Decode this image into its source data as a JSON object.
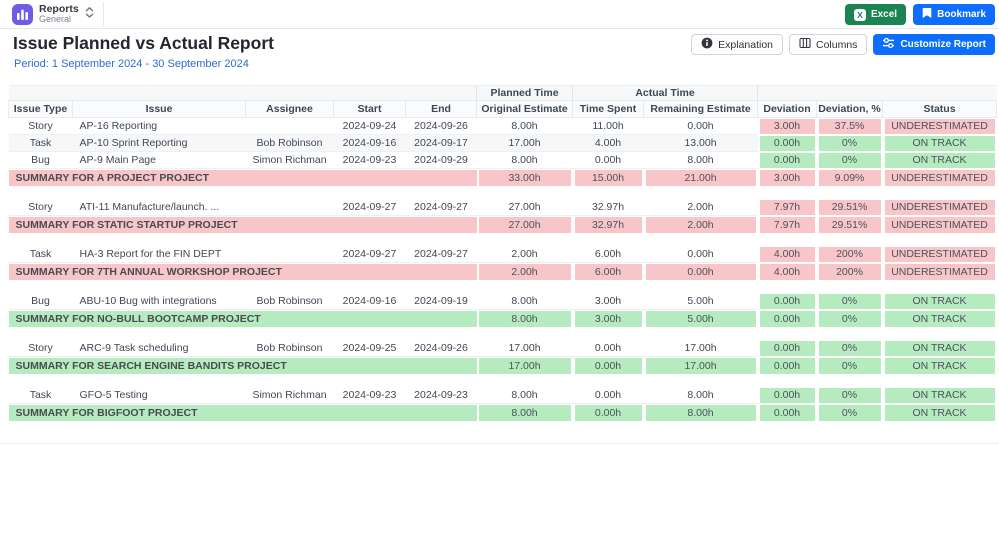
{
  "nav": {
    "app_title": "Reports",
    "app_subtitle": "General"
  },
  "header": {
    "title": "Issue Planned vs Actual Report",
    "period": "Period: 1 September 2024 - 30 September 2024",
    "buttons": {
      "excel": "Excel",
      "bookmark": "Bookmark",
      "explanation": "Explanation",
      "columns": "Columns",
      "customize": "Customize Report"
    }
  },
  "icons": {
    "logo": "bar-chart",
    "app_selector": "chevron-up-down",
    "excel_glyph": "X",
    "bookmark": "bookmark",
    "explanation": "info-circle",
    "columns": "columns",
    "customize": "sliders"
  },
  "colors": {
    "accent_blue": "#0d6efd",
    "excel_green": "#1b8450",
    "logo_purple": "#6e5be6",
    "period_blue": "#2d6cd2",
    "underestimated_pink": "#f8c6c8",
    "on_track_green": "#b5ebbe"
  },
  "table": {
    "group_headers": {
      "planned": "Planned Time",
      "actual": "Actual Time"
    },
    "columns": [
      "Issue Type",
      "Issue",
      "Assignee",
      "Start",
      "End",
      "Original Estimate",
      "Time Spent",
      "Remaining Estimate",
      "Deviation",
      "Deviation, %",
      "Status"
    ],
    "groups": [
      {
        "rows": [
          {
            "issue_type": "Story",
            "issue": "AP-16 Reporting",
            "assignee": "",
            "start": "2024-09-24",
            "end": "2024-09-26",
            "original_estimate": "8.00h",
            "time_spent": "11.00h",
            "remaining_estimate": "0.00h",
            "deviation": "3.00h",
            "deviation_pct": "37.5%",
            "status": "UNDERESTIMATED",
            "state": "bad"
          },
          {
            "issue_type": "Task",
            "issue": "AP-10 Sprint Reporting",
            "assignee": "Bob Robinson",
            "start": "2024-09-16",
            "end": "2024-09-17",
            "original_estimate": "17.00h",
            "time_spent": "4.00h",
            "remaining_estimate": "13.00h",
            "deviation": "0.00h",
            "deviation_pct": "0%",
            "status": "ON TRACK",
            "state": "good"
          },
          {
            "issue_type": "Bug",
            "issue": "AP-9 Main Page",
            "assignee": "Simon Richman",
            "start": "2024-09-23",
            "end": "2024-09-29",
            "original_estimate": "8.00h",
            "time_spent": "0.00h",
            "remaining_estimate": "8.00h",
            "deviation": "0.00h",
            "deviation_pct": "0%",
            "status": "ON TRACK",
            "state": "good"
          }
        ],
        "summary": {
          "label": "SUMMARY FOR A PROJECT PROJECT",
          "original_estimate": "33.00h",
          "time_spent": "15.00h",
          "remaining_estimate": "21.00h",
          "deviation": "3.00h",
          "deviation_pct": "9.09%",
          "status": "UNDERESTIMATED",
          "state": "bad"
        }
      },
      {
        "rows": [
          {
            "issue_type": "Story",
            "issue": "ATI-11 Manufacture/launch. ...",
            "assignee": "",
            "start": "2024-09-27",
            "end": "2024-09-27",
            "original_estimate": "27.00h",
            "time_spent": "32.97h",
            "remaining_estimate": "2.00h",
            "deviation": "7.97h",
            "deviation_pct": "29.51%",
            "status": "UNDERESTIMATED",
            "state": "bad"
          }
        ],
        "summary": {
          "label": "SUMMARY FOR STATIC STARTUP PROJECT",
          "original_estimate": "27.00h",
          "time_spent": "32.97h",
          "remaining_estimate": "2.00h",
          "deviation": "7.97h",
          "deviation_pct": "29.51%",
          "status": "UNDERESTIMATED",
          "state": "bad"
        }
      },
      {
        "rows": [
          {
            "issue_type": "Task",
            "issue": "HA-3 Report for the FIN DEPT",
            "assignee": "",
            "start": "2024-09-27",
            "end": "2024-09-27",
            "original_estimate": "2.00h",
            "time_spent": "6.00h",
            "remaining_estimate": "0.00h",
            "deviation": "4.00h",
            "deviation_pct": "200%",
            "status": "UNDERESTIMATED",
            "state": "bad"
          }
        ],
        "summary": {
          "label": "SUMMARY FOR 7TH ANNUAL WORKSHOP PROJECT",
          "original_estimate": "2.00h",
          "time_spent": "6.00h",
          "remaining_estimate": "0.00h",
          "deviation": "4.00h",
          "deviation_pct": "200%",
          "status": "UNDERESTIMATED",
          "state": "bad"
        }
      },
      {
        "rows": [
          {
            "issue_type": "Bug",
            "issue": "ABU-10 Bug with integrations",
            "assignee": "Bob Robinson",
            "start": "2024-09-16",
            "end": "2024-09-19",
            "original_estimate": "8.00h",
            "time_spent": "3.00h",
            "remaining_estimate": "5.00h",
            "deviation": "0.00h",
            "deviation_pct": "0%",
            "status": "ON TRACK",
            "state": "good"
          }
        ],
        "summary": {
          "label": "SUMMARY FOR NO-BULL BOOTCAMP PROJECT",
          "original_estimate": "8.00h",
          "time_spent": "3.00h",
          "remaining_estimate": "5.00h",
          "deviation": "0.00h",
          "deviation_pct": "0%",
          "status": "ON TRACK",
          "state": "good"
        }
      },
      {
        "rows": [
          {
            "issue_type": "Story",
            "issue": "ARC-9 Task scheduling",
            "assignee": "Bob Robinson",
            "start": "2024-09-25",
            "end": "2024-09-26",
            "original_estimate": "17.00h",
            "time_spent": "0.00h",
            "remaining_estimate": "17.00h",
            "deviation": "0.00h",
            "deviation_pct": "0%",
            "status": "ON TRACK",
            "state": "good"
          }
        ],
        "summary": {
          "label": "SUMMARY FOR SEARCH ENGINE BANDITS PROJECT",
          "original_estimate": "17.00h",
          "time_spent": "0.00h",
          "remaining_estimate": "17.00h",
          "deviation": "0.00h",
          "deviation_pct": "0%",
          "status": "ON TRACK",
          "state": "good"
        }
      },
      {
        "rows": [
          {
            "issue_type": "Task",
            "issue": "GFO-5 Testing",
            "assignee": "Simon Richman",
            "start": "2024-09-23",
            "end": "2024-09-23",
            "original_estimate": "8.00h",
            "time_spent": "0.00h",
            "remaining_estimate": "8.00h",
            "deviation": "0.00h",
            "deviation_pct": "0%",
            "status": "ON TRACK",
            "state": "good"
          }
        ],
        "summary": {
          "label": "SUMMARY FOR BIGFOOT PROJECT",
          "original_estimate": "8.00h",
          "time_spent": "0.00h",
          "remaining_estimate": "8.00h",
          "deviation": "0.00h",
          "deviation_pct": "0%",
          "status": "ON TRACK",
          "state": "good"
        }
      }
    ]
  }
}
